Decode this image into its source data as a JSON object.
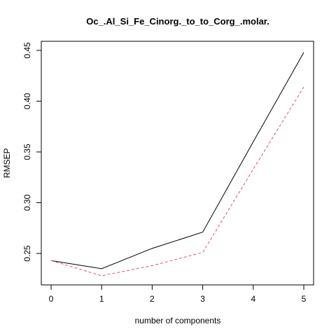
{
  "chart_data": {
    "type": "line",
    "title": "Oc_.Al_Si_Fe_Cinorg._to_to_Corg_.molar.",
    "xlabel": "number of components",
    "ylabel": "RMSEP",
    "x": [
      0,
      1,
      2,
      3,
      4,
      5
    ],
    "xlim": [
      0,
      5
    ],
    "ylim": [
      0.228,
      0.45
    ],
    "xticks": [
      "0",
      "1",
      "2",
      "3",
      "4",
      "5"
    ],
    "yticks": [
      "0.25",
      "0.30",
      "0.35",
      "0.40",
      "0.45"
    ],
    "grid": false,
    "legend": "none",
    "series": [
      {
        "values": [
          0.243,
          0.235,
          0.255,
          0.271,
          0.36,
          0.448
        ],
        "color": "#000000",
        "style": "solid"
      },
      {
        "values": [
          0.243,
          0.228,
          0.238,
          0.251,
          0.333,
          0.414
        ],
        "color": "#df536b",
        "style": "dashed"
      }
    ]
  }
}
